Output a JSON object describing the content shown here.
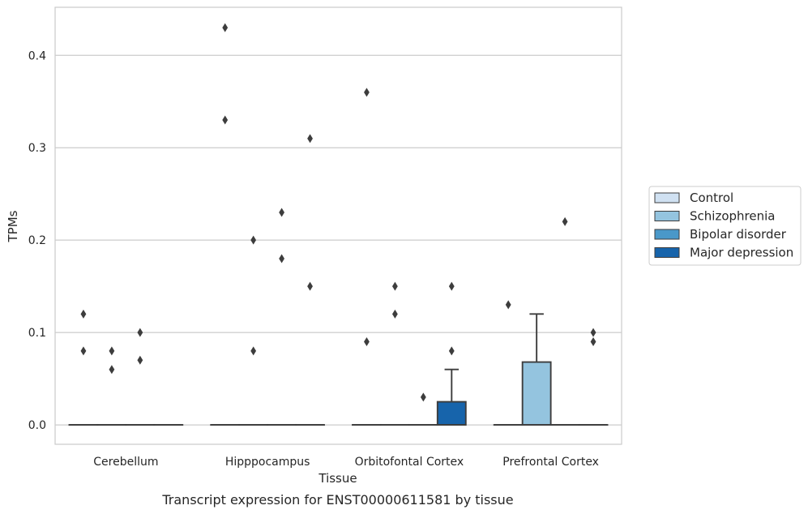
{
  "chart_data": {
    "type": "box",
    "caption": "Transcript expression for ENST00000611581 by tissue",
    "xlabel": "Tissue",
    "ylabel": "TPMs",
    "ylim": [
      -0.021,
      0.452
    ],
    "yticks": [
      0.0,
      0.1,
      0.2,
      0.3,
      0.4
    ],
    "ytick_labels": [
      "0.0",
      "0.1",
      "0.2",
      "0.3",
      "0.4"
    ],
    "grid": true,
    "legend_placement": "right",
    "categories": [
      "Cerebellum",
      "Hipppocampus",
      "Orbitofontal Cortex",
      "Prefrontal Cortex"
    ],
    "series": [
      {
        "name": "Control",
        "color": "#d0e1f2"
      },
      {
        "name": "Schizophrenia",
        "color": "#94c4df"
      },
      {
        "name": "Bipolar disorder",
        "color": "#4a98c9"
      },
      {
        "name": "Major depression",
        "color": "#1764ab"
      }
    ],
    "boxes": [
      {
        "category": 0,
        "series": 0,
        "q1": 0,
        "median": 0,
        "q3": 0,
        "whisker_low": 0,
        "whisker_high": 0,
        "outliers": [
          0.12,
          0.08
        ]
      },
      {
        "category": 0,
        "series": 1,
        "q1": 0,
        "median": 0,
        "q3": 0,
        "whisker_low": 0,
        "whisker_high": 0,
        "outliers": [
          0.08,
          0.06
        ]
      },
      {
        "category": 0,
        "series": 2,
        "q1": 0,
        "median": 0,
        "q3": 0,
        "whisker_low": 0,
        "whisker_high": 0,
        "outliers": [
          0.1,
          0.07
        ]
      },
      {
        "category": 0,
        "series": 3,
        "q1": 0,
        "median": 0,
        "q3": 0,
        "whisker_low": 0,
        "whisker_high": 0,
        "outliers": []
      },
      {
        "category": 1,
        "series": 0,
        "q1": 0,
        "median": 0,
        "q3": 0,
        "whisker_low": 0,
        "whisker_high": 0,
        "outliers": [
          0.43,
          0.33
        ]
      },
      {
        "category": 1,
        "series": 1,
        "q1": 0,
        "median": 0,
        "q3": 0,
        "whisker_low": 0,
        "whisker_high": 0,
        "outliers": [
          0.2,
          0.08
        ]
      },
      {
        "category": 1,
        "series": 2,
        "q1": 0,
        "median": 0,
        "q3": 0,
        "whisker_low": 0,
        "whisker_high": 0,
        "outliers": [
          0.23,
          0.18
        ]
      },
      {
        "category": 1,
        "series": 3,
        "q1": 0,
        "median": 0,
        "q3": 0,
        "whisker_low": 0,
        "whisker_high": 0,
        "outliers": [
          0.31,
          0.15
        ]
      },
      {
        "category": 2,
        "series": 0,
        "q1": 0,
        "median": 0,
        "q3": 0,
        "whisker_low": 0,
        "whisker_high": 0,
        "outliers": [
          0.36,
          0.09
        ]
      },
      {
        "category": 2,
        "series": 1,
        "q1": 0,
        "median": 0,
        "q3": 0,
        "whisker_low": 0,
        "whisker_high": 0,
        "outliers": [
          0.15,
          0.12
        ]
      },
      {
        "category": 2,
        "series": 2,
        "q1": 0,
        "median": 0,
        "q3": 0,
        "whisker_low": 0,
        "whisker_high": 0,
        "outliers": [
          0.03
        ]
      },
      {
        "category": 2,
        "series": 3,
        "q1": 0,
        "median": 0,
        "q3": 0.025,
        "whisker_low": 0,
        "whisker_high": 0.06,
        "outliers": [
          0.15,
          0.08
        ]
      },
      {
        "category": 3,
        "series": 0,
        "q1": 0,
        "median": 0,
        "q3": 0,
        "whisker_low": 0,
        "whisker_high": 0,
        "outliers": [
          0.13
        ]
      },
      {
        "category": 3,
        "series": 1,
        "q1": 0,
        "median": 0,
        "q3": 0.068,
        "whisker_low": 0,
        "whisker_high": 0.12,
        "outliers": []
      },
      {
        "category": 3,
        "series": 2,
        "q1": 0,
        "median": 0,
        "q3": 0,
        "whisker_low": 0,
        "whisker_high": 0,
        "outliers": [
          0.22
        ]
      },
      {
        "category": 3,
        "series": 3,
        "q1": 0,
        "median": 0,
        "q3": 0,
        "whisker_low": 0,
        "whisker_high": 0,
        "outliers": [
          0.1,
          0.09
        ]
      }
    ]
  }
}
